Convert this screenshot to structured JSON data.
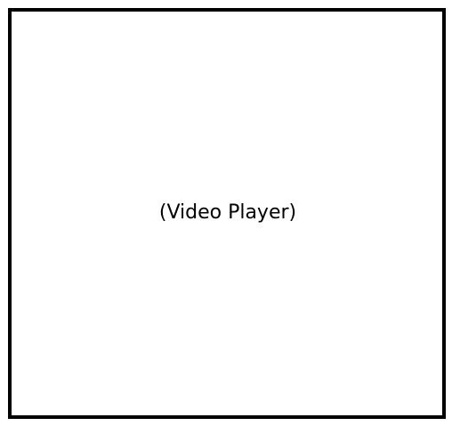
{
  "video_player": {
    "label": "(Video Player)"
  },
  "colors": {
    "border": "#000000",
    "background": "#ffffff",
    "text": "#000000"
  }
}
